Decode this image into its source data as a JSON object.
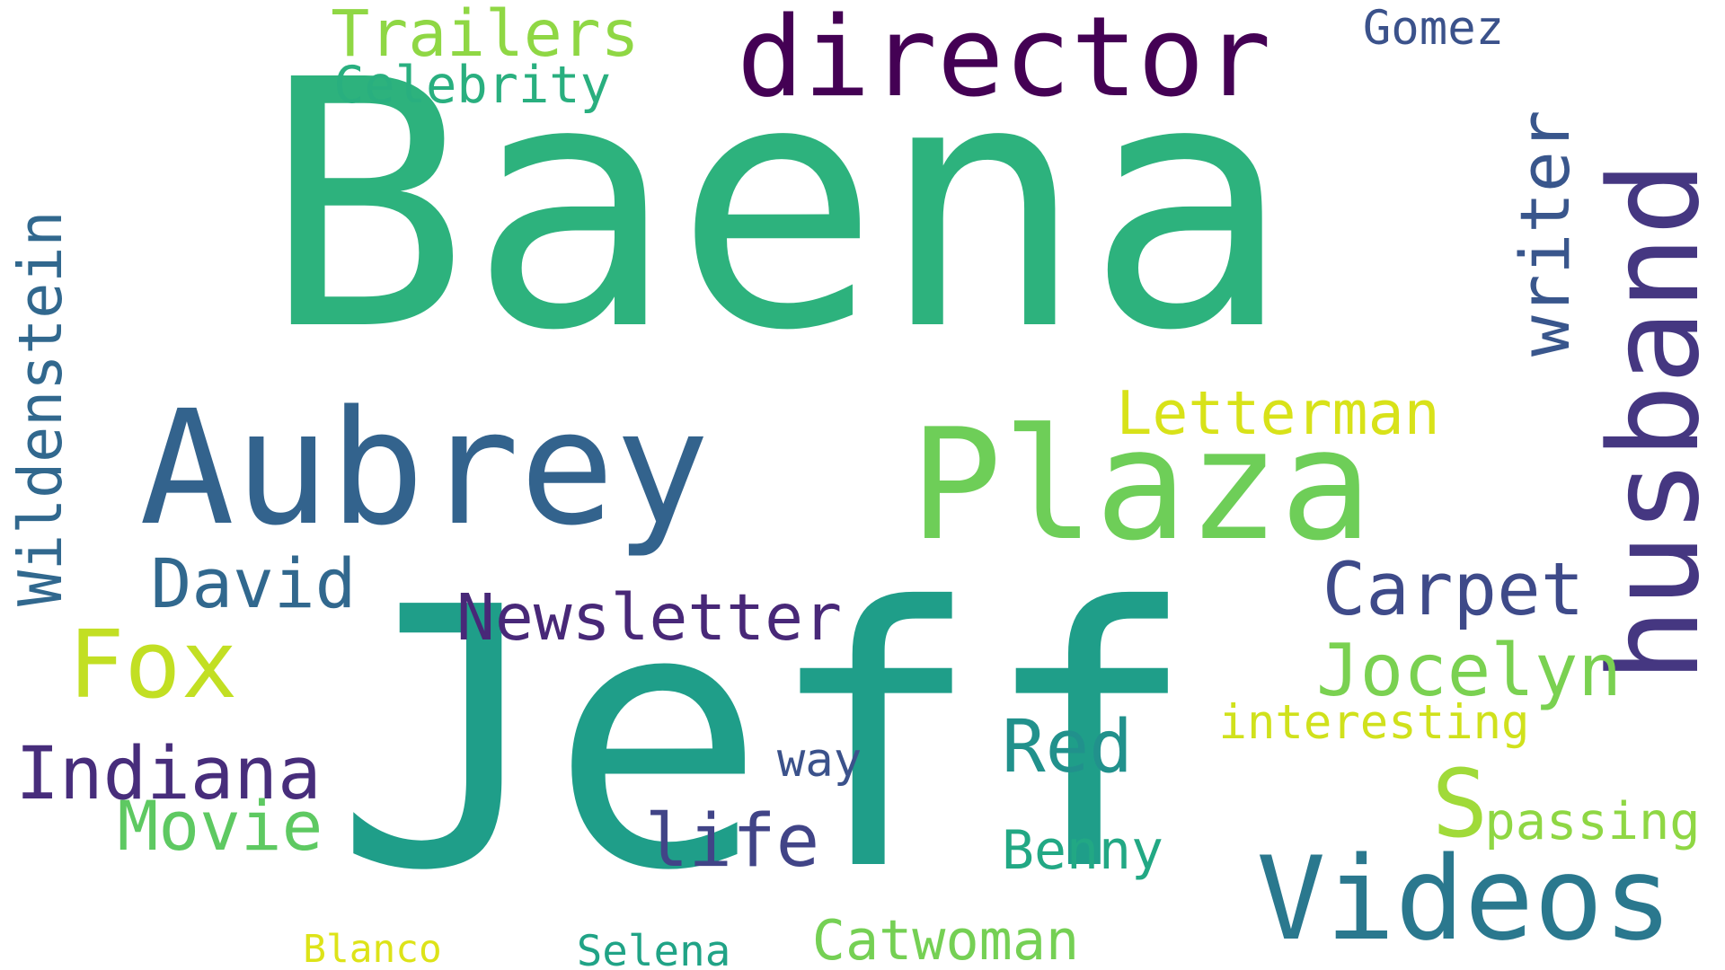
{
  "words": [
    {
      "id": "baena",
      "text": "Baena",
      "color": "#2db27d"
    },
    {
      "id": "jeff",
      "text": "Jeff",
      "color": "#1f9e89"
    },
    {
      "id": "director",
      "text": "director",
      "color": "#440154"
    },
    {
      "id": "husband",
      "text": "husband",
      "color": "#453781"
    },
    {
      "id": "aubrey",
      "text": "Aubrey",
      "color": "#33638d"
    },
    {
      "id": "plaza",
      "text": "Plaza",
      "color": "#6ece58"
    },
    {
      "id": "writer",
      "text": "writer",
      "color": "#39568c"
    },
    {
      "id": "wildenstein",
      "text": "Wildenstein",
      "color": "#31688e"
    },
    {
      "id": "trailers",
      "text": "Trailers",
      "color": "#8fd744"
    },
    {
      "id": "celebrity",
      "text": "Celebrity",
      "color": "#29af7f"
    },
    {
      "id": "gomez",
      "text": "Gomez",
      "color": "#3b528b"
    },
    {
      "id": "letterman",
      "text": "Letterman",
      "color": "#d8e219"
    },
    {
      "id": "david",
      "text": "David",
      "color": "#31688e"
    },
    {
      "id": "fox",
      "text": "Fox",
      "color": "#c2df23"
    },
    {
      "id": "newsletter",
      "text": "Newsletter",
      "color": "#482878"
    },
    {
      "id": "carpet",
      "text": "Carpet",
      "color": "#3e4a89"
    },
    {
      "id": "jocelyn",
      "text": "Jocelyn",
      "color": "#7ad151"
    },
    {
      "id": "interesting",
      "text": "interesting",
      "color": "#d0e11c"
    },
    {
      "id": "indiana",
      "text": "Indiana",
      "color": "#472d7b"
    },
    {
      "id": "way",
      "text": "way",
      "color": "#3b528b"
    },
    {
      "id": "red",
      "text": "Red",
      "color": "#21918c"
    },
    {
      "id": "s",
      "text": "S",
      "color": "#a0da39"
    },
    {
      "id": "passing",
      "text": "passing",
      "color": "#8fd744"
    },
    {
      "id": "movie",
      "text": "Movie",
      "color": "#5ec962"
    },
    {
      "id": "life",
      "text": "life",
      "color": "#414487"
    },
    {
      "id": "benny",
      "text": "Benny",
      "color": "#22a884"
    },
    {
      "id": "videos",
      "text": "Videos",
      "color": "#2a788e"
    },
    {
      "id": "blanco",
      "text": "Blanco",
      "color": "#dde318"
    },
    {
      "id": "selena",
      "text": "Selena",
      "color": "#20a386"
    },
    {
      "id": "catwoman",
      "text": "Catwoman",
      "color": "#75d054"
    }
  ]
}
